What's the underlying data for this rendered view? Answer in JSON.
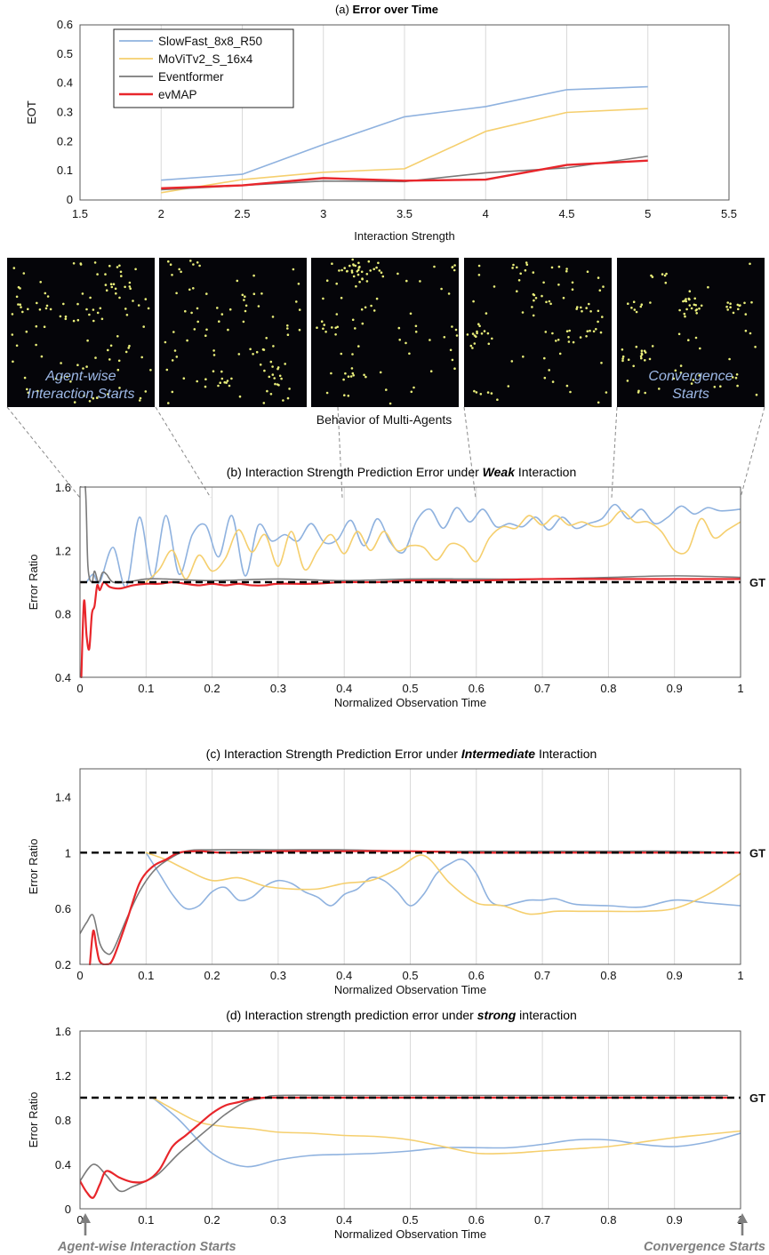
{
  "colors": {
    "slowfast": "#8fb2df",
    "movit": "#f5cf6e",
    "eventformer": "#7a7a7a",
    "evmap": "#e8262b",
    "gt": "#000000",
    "panel_bg": "#050509",
    "dot": "#e9ee7a",
    "caption": "#9db8e6",
    "note": "#7f7f7f",
    "connector": "#8a8a8a",
    "grid": "#d9d9d9"
  },
  "chart_data": [
    {
      "id": "a",
      "type": "line",
      "title_prefix": "(a) ",
      "title_bold": "Error over Time",
      "xlabel": "Interaction Strength",
      "ylabel": "EOT",
      "xlim": [
        1.5,
        5.5
      ],
      "ylim": [
        0,
        0.6
      ],
      "xticks": [
        "1.5",
        "2",
        "2.5",
        "3",
        "3.5",
        "4",
        "4.5",
        "5",
        "5.5"
      ],
      "yticks": [
        "0",
        "0.1",
        "0.2",
        "0.3",
        "0.4",
        "0.5",
        "0.6"
      ],
      "grid": "vertical",
      "legend_position": "top-left",
      "x": [
        2,
        2.5,
        3,
        3.5,
        4,
        4.5,
        5
      ],
      "series": [
        {
          "name": "SlowFast_8x8_R50",
          "key": "slowfast",
          "values": [
            0.068,
            0.088,
            0.19,
            0.285,
            0.32,
            0.378,
            0.388
          ]
        },
        {
          "name": "MoViTv2_S_16x4",
          "key": "movit",
          "values": [
            0.025,
            0.07,
            0.095,
            0.107,
            0.235,
            0.3,
            0.313
          ]
        },
        {
          "name": "Eventformer",
          "key": "eventformer",
          "values": [
            0.035,
            0.05,
            0.065,
            0.063,
            0.093,
            0.11,
            0.15
          ]
        },
        {
          "name": "evMAP",
          "key": "evmap",
          "values": [
            0.04,
            0.05,
            0.075,
            0.066,
            0.07,
            0.12,
            0.135
          ]
        }
      ]
    },
    {
      "id": "b",
      "type": "line",
      "title_prefix": "(b) Interaction Strength Prediction Error under ",
      "title_bold": "Weak",
      "title_suffix": " Interaction",
      "xlabel": "Normalized Observation Time",
      "ylabel": "Error Ratio",
      "xlim": [
        0,
        1
      ],
      "ylim": [
        0.4,
        1.6
      ],
      "xticks": [
        "0",
        "0.1",
        "0.2",
        "0.3",
        "0.4",
        "0.5",
        "0.6",
        "0.7",
        "0.8",
        "0.9",
        "1"
      ],
      "yticks": [
        "0.4",
        "0.8",
        "1.2",
        "1.6"
      ],
      "ytick_values": [
        0.4,
        0.8,
        1.2,
        1.6
      ],
      "grid": "vertical",
      "reference_line": {
        "label": "GT",
        "value": 1.0
      },
      "series": [
        {
          "name": "SlowFast_8x8_R50",
          "key": "slowfast",
          "x": [
            0.01,
            0.02,
            0.03,
            0.05,
            0.07,
            0.09,
            0.11,
            0.13,
            0.15,
            0.17,
            0.19,
            0.21,
            0.23,
            0.25,
            0.27,
            0.29,
            0.31,
            0.33,
            0.35,
            0.37,
            0.39,
            0.41,
            0.43,
            0.45,
            0.47,
            0.49,
            0.51,
            0.53,
            0.55,
            0.57,
            0.59,
            0.61,
            0.63,
            0.65,
            0.67,
            0.69,
            0.71,
            0.73,
            0.75,
            0.77,
            0.79,
            0.81,
            0.83,
            0.85,
            0.87,
            0.89,
            0.91,
            0.93,
            0.95,
            0.97,
            1.0
          ],
          "values": [
            1.0,
            1.05,
            1.0,
            1.22,
            0.97,
            1.41,
            1.03,
            1.42,
            1.05,
            1.3,
            1.36,
            1.16,
            1.42,
            1.04,
            1.36,
            1.26,
            1.3,
            1.26,
            1.37,
            1.25,
            1.27,
            1.39,
            1.23,
            1.4,
            1.25,
            1.19,
            1.39,
            1.46,
            1.34,
            1.47,
            1.38,
            1.46,
            1.35,
            1.37,
            1.35,
            1.41,
            1.33,
            1.41,
            1.34,
            1.37,
            1.4,
            1.49,
            1.4,
            1.46,
            1.37,
            1.41,
            1.48,
            1.43,
            1.47,
            1.45,
            1.46
          ]
        },
        {
          "name": "MoViTv2_S_16x4",
          "key": "movit",
          "x": [
            0.1,
            0.12,
            0.14,
            0.16,
            0.18,
            0.2,
            0.22,
            0.24,
            0.26,
            0.28,
            0.3,
            0.32,
            0.34,
            0.36,
            0.38,
            0.4,
            0.42,
            0.44,
            0.46,
            0.48,
            0.5,
            0.52,
            0.54,
            0.56,
            0.58,
            0.6,
            0.62,
            0.64,
            0.66,
            0.68,
            0.7,
            0.72,
            0.74,
            0.76,
            0.78,
            0.8,
            0.82,
            0.84,
            0.86,
            0.88,
            0.9,
            0.92,
            0.94,
            0.96,
            0.98,
            1.0
          ],
          "values": [
            1.0,
            1.08,
            1.2,
            1.02,
            1.17,
            1.07,
            1.15,
            1.33,
            1.19,
            1.3,
            1.1,
            1.32,
            1.08,
            1.2,
            1.3,
            1.18,
            1.32,
            1.2,
            1.32,
            1.2,
            1.23,
            1.22,
            1.14,
            1.24,
            1.22,
            1.13,
            1.28,
            1.35,
            1.34,
            1.42,
            1.36,
            1.42,
            1.36,
            1.38,
            1.35,
            1.37,
            1.45,
            1.38,
            1.38,
            1.32,
            1.2,
            1.2,
            1.4,
            1.28,
            1.33,
            1.38
          ]
        },
        {
          "name": "Eventformer",
          "key": "eventformer",
          "x": [
            0.0,
            0.008,
            0.012,
            0.018,
            0.022,
            0.028,
            0.034,
            0.04,
            0.05,
            0.07,
            0.1,
            0.13,
            0.2,
            0.3,
            0.4,
            0.5,
            0.6,
            0.7,
            0.8,
            0.9,
            1.0
          ],
          "values": [
            1.6,
            1.6,
            1.1,
            1.0,
            1.07,
            1.0,
            1.06,
            1.05,
            1.0,
            1.0,
            1.02,
            1.02,
            1.01,
            1.02,
            1.01,
            1.02,
            1.02,
            1.02,
            1.03,
            1.04,
            1.03
          ]
        },
        {
          "name": "evMAP",
          "key": "evmap",
          "x": [
            0.002,
            0.006,
            0.01,
            0.014,
            0.018,
            0.022,
            0.026,
            0.03,
            0.036,
            0.045,
            0.06,
            0.08,
            0.1,
            0.12,
            0.14,
            0.16,
            0.18,
            0.2,
            0.22,
            0.24,
            0.26,
            0.28,
            0.3,
            0.35,
            0.4,
            0.45,
            0.5,
            0.6,
            0.7,
            0.8,
            0.9,
            1.0
          ],
          "values": [
            0.4,
            0.88,
            0.66,
            0.58,
            0.8,
            0.85,
            0.98,
            0.95,
            1.0,
            0.97,
            0.96,
            0.98,
            0.99,
            0.99,
            1.0,
            0.99,
            0.98,
            0.99,
            0.98,
            0.99,
            0.98,
            0.98,
            0.99,
            0.99,
            1.0,
            1.0,
            1.01,
            1.01,
            1.02,
            1.02,
            1.02,
            1.02
          ]
        }
      ]
    },
    {
      "id": "c",
      "type": "line",
      "title_prefix": "(c) Interaction Strength Prediction Error under ",
      "title_bold": "Intermediate",
      "title_suffix": " Interaction",
      "xlabel": "Normalized Observation Time",
      "ylabel": "Error Ratio",
      "xlim": [
        0,
        1
      ],
      "ylim": [
        0.2,
        1.6
      ],
      "xticks": [
        "0",
        "0.1",
        "0.2",
        "0.3",
        "0.4",
        "0.5",
        "0.6",
        "0.7",
        "0.8",
        "0.9",
        "1"
      ],
      "yticks": [
        "0.2",
        "0.6",
        "1",
        "1.4"
      ],
      "ytick_values": [
        0.2,
        0.6,
        1.0,
        1.4
      ],
      "grid": "vertical",
      "reference_line": {
        "label": "GT",
        "value": 1.0
      },
      "series": [
        {
          "name": "SlowFast_8x8_R50",
          "key": "slowfast",
          "x": [
            0.1,
            0.12,
            0.14,
            0.16,
            0.18,
            0.2,
            0.22,
            0.24,
            0.26,
            0.28,
            0.3,
            0.32,
            0.34,
            0.36,
            0.38,
            0.4,
            0.42,
            0.44,
            0.46,
            0.48,
            0.5,
            0.52,
            0.54,
            0.56,
            0.58,
            0.6,
            0.62,
            0.64,
            0.66,
            0.68,
            0.7,
            0.72,
            0.75,
            0.8,
            0.85,
            0.9,
            0.95,
            1.0
          ],
          "values": [
            1.0,
            0.85,
            0.7,
            0.6,
            0.62,
            0.72,
            0.75,
            0.66,
            0.68,
            0.76,
            0.8,
            0.78,
            0.72,
            0.68,
            0.62,
            0.7,
            0.74,
            0.82,
            0.8,
            0.72,
            0.62,
            0.7,
            0.85,
            0.92,
            0.95,
            0.85,
            0.66,
            0.62,
            0.64,
            0.66,
            0.66,
            0.67,
            0.63,
            0.62,
            0.61,
            0.66,
            0.64,
            0.62
          ]
        },
        {
          "name": "MoViTv2_S_16x4",
          "key": "movit",
          "x": [
            0.1,
            0.13,
            0.16,
            0.2,
            0.24,
            0.28,
            0.32,
            0.36,
            0.4,
            0.44,
            0.48,
            0.52,
            0.56,
            0.6,
            0.64,
            0.68,
            0.72,
            0.76,
            0.8,
            0.85,
            0.9,
            0.95,
            1.0
          ],
          "values": [
            1.0,
            0.95,
            0.88,
            0.8,
            0.82,
            0.76,
            0.74,
            0.74,
            0.78,
            0.8,
            0.88,
            0.98,
            0.78,
            0.64,
            0.62,
            0.56,
            0.58,
            0.58,
            0.58,
            0.58,
            0.6,
            0.7,
            0.85
          ]
        },
        {
          "name": "Eventformer",
          "key": "eventformer",
          "x": [
            0.0,
            0.01,
            0.02,
            0.03,
            0.04,
            0.05,
            0.07,
            0.09,
            0.11,
            0.13,
            0.16,
            0.2,
            0.3,
            0.4,
            0.5,
            0.6,
            0.7,
            0.8,
            0.9,
            1.0
          ],
          "values": [
            0.42,
            0.5,
            0.55,
            0.35,
            0.28,
            0.3,
            0.52,
            0.72,
            0.86,
            0.94,
            1.01,
            1.02,
            1.02,
            1.02,
            1.01,
            1.01,
            1.01,
            1.01,
            1.01,
            1.0
          ]
        },
        {
          "name": "evMAP",
          "key": "evmap",
          "x": [
            0.015,
            0.02,
            0.025,
            0.03,
            0.04,
            0.05,
            0.07,
            0.09,
            0.11,
            0.13,
            0.15,
            0.18,
            0.22,
            0.3,
            0.4,
            0.5,
            0.6,
            0.7,
            0.8,
            0.9,
            1.0
          ],
          "values": [
            0.2,
            0.44,
            0.32,
            0.22,
            0.2,
            0.24,
            0.5,
            0.78,
            0.9,
            0.95,
            1.0,
            1.01,
            1.0,
            1.01,
            1.01,
            1.01,
            1.0,
            1.0,
            1.0,
            1.0,
            1.0
          ]
        }
      ]
    },
    {
      "id": "d",
      "type": "line",
      "title_prefix": "(d) Interaction strength prediction error under ",
      "title_bold": "strong",
      "title_suffix": " interaction",
      "xlabel": "Normalized Observation Time",
      "ylabel": "Error Ratio",
      "xlim": [
        0,
        1
      ],
      "ylim": [
        0,
        1.6
      ],
      "xticks": [
        "0",
        "0.1",
        "0.2",
        "0.3",
        "0.4",
        "0.5",
        "0.6",
        "0.7",
        "0.8",
        "0.9",
        "1"
      ],
      "yticks": [
        "0",
        "0.4",
        "0.8",
        "1.2",
        "1.6"
      ],
      "ytick_values": [
        0,
        0.4,
        0.8,
        1.2,
        1.6
      ],
      "grid": "vertical",
      "reference_line": {
        "label": "GT",
        "value": 1.0
      },
      "series": [
        {
          "name": "SlowFast_8x8_R50",
          "key": "slowfast",
          "x": [
            0.11,
            0.15,
            0.2,
            0.25,
            0.3,
            0.35,
            0.4,
            0.45,
            0.5,
            0.55,
            0.6,
            0.65,
            0.7,
            0.75,
            0.8,
            0.85,
            0.9,
            0.95,
            1.0
          ],
          "values": [
            1.0,
            0.8,
            0.5,
            0.38,
            0.44,
            0.48,
            0.49,
            0.5,
            0.52,
            0.55,
            0.55,
            0.55,
            0.58,
            0.62,
            0.62,
            0.58,
            0.56,
            0.6,
            0.68
          ]
        },
        {
          "name": "MoViTv2_S_16x4",
          "key": "movit",
          "x": [
            0.11,
            0.14,
            0.18,
            0.22,
            0.26,
            0.3,
            0.35,
            0.4,
            0.45,
            0.5,
            0.55,
            0.6,
            0.65,
            0.7,
            0.75,
            0.8,
            0.85,
            0.9,
            0.95,
            1.0
          ],
          "values": [
            1.0,
            0.9,
            0.78,
            0.74,
            0.72,
            0.69,
            0.68,
            0.66,
            0.65,
            0.62,
            0.56,
            0.5,
            0.5,
            0.52,
            0.54,
            0.56,
            0.6,
            0.64,
            0.67,
            0.7
          ]
        },
        {
          "name": "Eventformer",
          "key": "eventformer",
          "x": [
            0.0,
            0.02,
            0.04,
            0.06,
            0.08,
            0.1,
            0.12,
            0.15,
            0.18,
            0.2,
            0.22,
            0.25,
            0.28,
            0.3,
            0.4,
            0.5,
            0.6,
            0.7,
            0.8,
            0.9,
            0.98
          ],
          "values": [
            0.25,
            0.4,
            0.3,
            0.16,
            0.2,
            0.25,
            0.32,
            0.5,
            0.65,
            0.75,
            0.85,
            0.96,
            1.0,
            1.02,
            1.02,
            1.02,
            1.02,
            1.02,
            1.02,
            1.02,
            1.02
          ]
        },
        {
          "name": "evMAP",
          "key": "evmap",
          "x": [
            0.0,
            0.01,
            0.02,
            0.03,
            0.04,
            0.06,
            0.08,
            0.1,
            0.12,
            0.14,
            0.16,
            0.18,
            0.2,
            0.22,
            0.24,
            0.26,
            0.28,
            0.3,
            0.4,
            0.5,
            0.6,
            0.7,
            0.8,
            0.9,
            0.98
          ],
          "values": [
            0.25,
            0.15,
            0.1,
            0.22,
            0.34,
            0.28,
            0.24,
            0.25,
            0.35,
            0.56,
            0.66,
            0.76,
            0.86,
            0.93,
            0.96,
            0.99,
            1.0,
            1.0,
            1.0,
            1.0,
            1.0,
            1.0,
            1.0,
            1.0,
            1.0
          ]
        }
      ]
    }
  ],
  "panels": {
    "caption": "Behavior of Multi-Agents",
    "items": [
      {
        "label_lines": [
          "Agent-wise",
          "Interaction Starts"
        ],
        "dots": 110,
        "seed": 11
      },
      {
        "label_lines": [],
        "dots": 100,
        "seed": 23
      },
      {
        "label_lines": [],
        "dots": 105,
        "seed": 37
      },
      {
        "label_lines": [],
        "dots": 100,
        "seed": 51
      },
      {
        "label_lines": [
          "Convergence",
          "Starts"
        ],
        "dots": 95,
        "seed": 67
      }
    ]
  },
  "annotations": {
    "start_label": "Agent-wise Interaction Starts",
    "end_label": "Convergence Starts"
  }
}
